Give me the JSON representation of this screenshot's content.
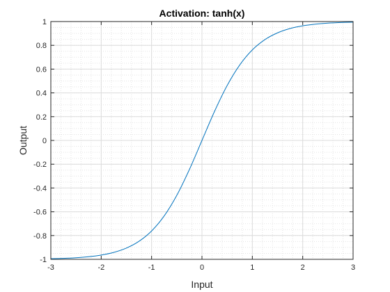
{
  "chart_data": {
    "type": "line",
    "title": "Activation: tanh(x)",
    "xlabel": "Input",
    "ylabel": "Output",
    "xlim": [
      -3,
      3
    ],
    "ylim": [
      -1,
      1
    ],
    "x_ticks": [
      -3,
      -2,
      -1,
      0,
      1,
      2,
      3
    ],
    "x_tick_labels": [
      "-3",
      "-2",
      "-1",
      "0",
      "1",
      "2",
      "3"
    ],
    "y_ticks": [
      -1,
      -0.8,
      -0.6,
      -0.4,
      -0.2,
      0,
      0.2,
      0.4,
      0.6,
      0.8,
      1
    ],
    "y_tick_labels": [
      "-1",
      "-0.8",
      "-0.6",
      "-0.4",
      "-0.2",
      "0",
      "0.2",
      "0.4",
      "0.6",
      "0.8",
      "1"
    ],
    "grid": true,
    "minor_grid": true,
    "legend": "none",
    "series": [
      {
        "color": "#0072bd",
        "x": [
          -3,
          -2.75,
          -2.5,
          -2.25,
          -2,
          -1.75,
          -1.5,
          -1.25,
          -1,
          -0.75,
          -0.5,
          -0.25,
          0,
          0.25,
          0.5,
          0.75,
          1,
          1.25,
          1.5,
          1.75,
          2,
          2.25,
          2.5,
          2.75,
          3
        ],
        "y": [
          -0.9951,
          -0.9918,
          -0.9866,
          -0.978,
          -0.964,
          -0.9414,
          -0.9051,
          -0.8483,
          -0.7616,
          -0.6351,
          -0.4621,
          -0.2449,
          0,
          0.2449,
          0.4621,
          0.6351,
          0.7616,
          0.8483,
          0.9051,
          0.9414,
          0.964,
          0.978,
          0.9866,
          0.9918,
          0.9951
        ]
      }
    ]
  }
}
